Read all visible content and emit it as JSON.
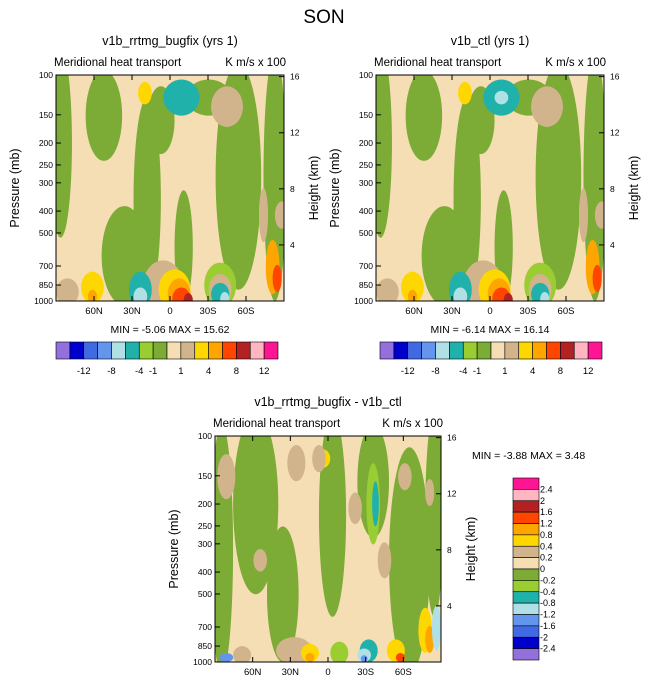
{
  "page_title": "SON",
  "colors": {
    "lbl12": [
      "#9370db",
      "#0000cd",
      "#4169e1",
      "#6495ed",
      "#b0e0e6",
      "#20b2aa",
      "#9acd32",
      "#7cab36",
      "#f5deb3",
      "#d2b48c",
      "#ffd700",
      "#ffa500",
      "#ff4500",
      "#b22222",
      "#ffb6c1",
      "#ff1493"
    ],
    "dif": [
      "#9370db",
      "#0000cd",
      "#4169e1",
      "#6495ed",
      "#b0e0e6",
      "#20b2aa",
      "#9acd32",
      "#7cab36",
      "#f5deb3",
      "#d2b48c",
      "#ffd700",
      "#ffa500",
      "#ff4500",
      "#b22222",
      "#ffb6c1",
      "#ff1493"
    ]
  },
  "chart_data": [
    {
      "type": "heatmap",
      "title": "v1b_rrtmg_bugfix (yrs 1)",
      "subtitle_left": "Meridional heat transport",
      "subtitle_right": "K m/s x 100",
      "ylabel": "Pressure (mb)",
      "ylabel_right": "Height (km)",
      "x_ticks": [
        "60N",
        "30N",
        "0",
        "30S",
        "60S"
      ],
      "x_values": [
        60,
        30,
        0,
        -30,
        -60
      ],
      "xlim": [
        90,
        -90
      ],
      "y_ticks": [
        "100",
        "150",
        "200",
        "250",
        "300",
        "400",
        "500",
        "700",
        "850",
        "1000"
      ],
      "y_values": [
        100,
        150,
        200,
        250,
        300,
        400,
        500,
        700,
        850,
        1000
      ],
      "ylim": [
        100,
        1000
      ],
      "height_ticks": [
        "16",
        "12",
        "8",
        "4"
      ],
      "height_values": [
        16,
        12,
        8,
        4
      ],
      "stats": "MIN =  -5.06   MAX =  15.62",
      "min": -5.06,
      "max": 15.62,
      "colorbar_labels": [
        "-12",
        "-8",
        "-4",
        "-1",
        "1",
        "4",
        "8",
        "12"
      ]
    },
    {
      "type": "heatmap",
      "title": "v1b_ctl (yrs 1)",
      "subtitle_left": "Meridional heat transport",
      "subtitle_right": "K m/s x 100",
      "ylabel": "Pressure (mb)",
      "ylabel_right": "Height (km)",
      "x_ticks": [
        "60N",
        "30N",
        "0",
        "30S",
        "60S"
      ],
      "x_values": [
        60,
        30,
        0,
        -30,
        -60
      ],
      "xlim": [
        90,
        -90
      ],
      "y_ticks": [
        "100",
        "150",
        "200",
        "250",
        "300",
        "400",
        "500",
        "700",
        "850",
        "1000"
      ],
      "y_values": [
        100,
        150,
        200,
        250,
        300,
        400,
        500,
        700,
        850,
        1000
      ],
      "ylim": [
        100,
        1000
      ],
      "height_ticks": [
        "16",
        "12",
        "8",
        "4"
      ],
      "height_values": [
        16,
        12,
        8,
        4
      ],
      "stats": "MIN =  -6.14   MAX =  16.14",
      "min": -6.14,
      "max": 16.14,
      "colorbar_labels": [
        "-12",
        "-8",
        "-4",
        "-1",
        "1",
        "4",
        "8",
        "12"
      ]
    },
    {
      "type": "heatmap",
      "title": "v1b_rrtmg_bugfix - v1b_ctl",
      "subtitle_left": "Meridional heat transport",
      "subtitle_right": "K m/s x 100",
      "ylabel": "Pressure (mb)",
      "ylabel_right": "Height (km)",
      "x_ticks": [
        "60N",
        "30N",
        "0",
        "30S",
        "60S"
      ],
      "x_values": [
        60,
        30,
        0,
        -30,
        -60
      ],
      "xlim": [
        90,
        -90
      ],
      "y_ticks": [
        "100",
        "150",
        "200",
        "250",
        "300",
        "400",
        "500",
        "700",
        "850",
        "1000"
      ],
      "y_values": [
        100,
        150,
        200,
        250,
        300,
        400,
        500,
        700,
        850,
        1000
      ],
      "ylim": [
        100,
        1000
      ],
      "height_ticks": [
        "16",
        "12",
        "8",
        "4"
      ],
      "height_values": [
        16,
        12,
        8,
        4
      ],
      "stats": "MIN =   -3.88   MAX =   3.48",
      "min": -3.88,
      "max": 3.48,
      "colorbar_labels": [
        "2.4",
        "2",
        "1.6",
        "1.2",
        "0.8",
        "0.4",
        "0.2",
        "0",
        "-0.2",
        "-0.4",
        "-0.8",
        "-1.2",
        "-1.6",
        "-2",
        "-2.4"
      ]
    }
  ]
}
